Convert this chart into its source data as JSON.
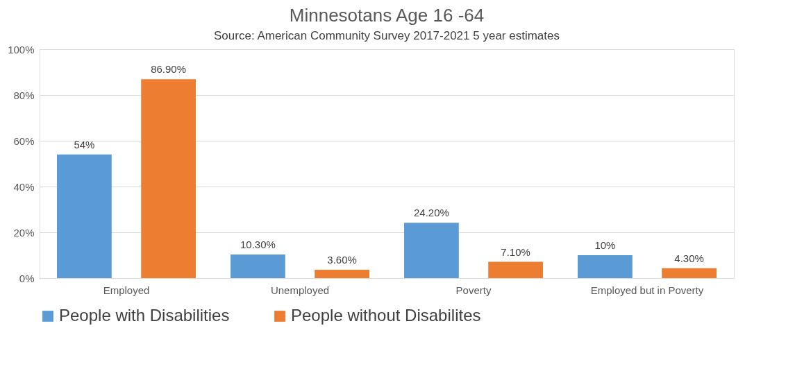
{
  "chart_data": {
    "type": "bar",
    "title": "Minnesotans Age 16 -64",
    "annotations": [
      "Source: American Community Survey 2017-2021 5 year estimates"
    ],
    "categories": [
      "Employed",
      "Unemployed",
      "Poverty",
      "Employed but in Poverty"
    ],
    "series": [
      {
        "name": "People with Disabilities",
        "color": "#5b9bd5",
        "values": [
          54,
          10.3,
          24.2,
          10
        ],
        "value_labels": [
          "54%",
          "10.30%",
          "24.20%",
          "10%"
        ]
      },
      {
        "name": "People without Disabilites",
        "color": "#ed7d31",
        "values": [
          86.9,
          3.6,
          7.1,
          4.3
        ],
        "value_labels": [
          "86.90%",
          "3.60%",
          "7.10%",
          "4.30%"
        ]
      }
    ],
    "ylim": [
      0,
      100
    ],
    "yticks": [
      {
        "value": 0,
        "label": "0%"
      },
      {
        "value": 20,
        "label": "20%"
      },
      {
        "value": 40,
        "label": "40%"
      },
      {
        "value": 60,
        "label": "60%"
      },
      {
        "value": 80,
        "label": "80%"
      },
      {
        "value": 100,
        "label": "100%"
      }
    ],
    "grid": "y",
    "legend": "bottom"
  }
}
